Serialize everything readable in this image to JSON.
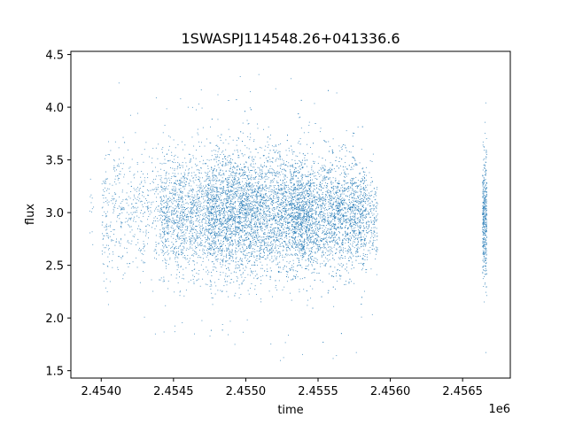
{
  "chart_data": {
    "type": "scatter",
    "title": "1SWASPJ114548.26+041336.6",
    "xlabel": "time",
    "ylabel": "flux",
    "x_offset_label": "1e6",
    "xlim": [
      2.45379,
      2.45683
    ],
    "ylim": [
      1.43,
      4.53
    ],
    "x_ticks": [
      2.454,
      2.4545,
      2.455,
      2.4555,
      2.456,
      2.4565
    ],
    "x_tick_labels": [
      "2.4540",
      "2.4545",
      "2.4550",
      "2.4555",
      "2.4560",
      "2.4565"
    ],
    "y_ticks": [
      1.5,
      2.0,
      2.5,
      3.0,
      3.5,
      4.0,
      4.5
    ],
    "y_tick_labels": [
      "1.5",
      "2.0",
      "2.5",
      "3.0",
      "3.5",
      "4.0",
      "4.5"
    ],
    "grid": false,
    "marker_color": "#1f77b4",
    "clusters": [
      {
        "x_center": 2.45393,
        "x_width": 3e-05,
        "y_center": 3.05,
        "y_spread": 0.22,
        "count": 12,
        "ymin": 2.5,
        "ymax": 3.85
      },
      {
        "x_center": 2.45455,
        "x_width": 0.0011,
        "y_center": 2.98,
        "y_spread": 0.3,
        "count": 1400,
        "ymin": 1.8,
        "ymax": 4.42
      },
      {
        "x_center": 2.45493,
        "x_width": 0.00105,
        "y_center": 3.0,
        "y_spread": 0.28,
        "count": 2600,
        "ymin": 1.55,
        "ymax": 4.37
      },
      {
        "x_center": 2.45528,
        "x_width": 0.0011,
        "y_center": 3.0,
        "y_spread": 0.3,
        "count": 3600,
        "ymin": 1.57,
        "ymax": 4.35
      },
      {
        "x_center": 2.45561,
        "x_width": 0.0006,
        "y_center": 2.96,
        "y_spread": 0.22,
        "count": 1300,
        "ymin": 1.95,
        "ymax": 4.2
      },
      {
        "x_center": 2.45665,
        "x_width": 3e-05,
        "y_center": 2.95,
        "y_spread": 0.3,
        "count": 420,
        "ymin": 1.63,
        "ymax": 4.22
      }
    ]
  }
}
